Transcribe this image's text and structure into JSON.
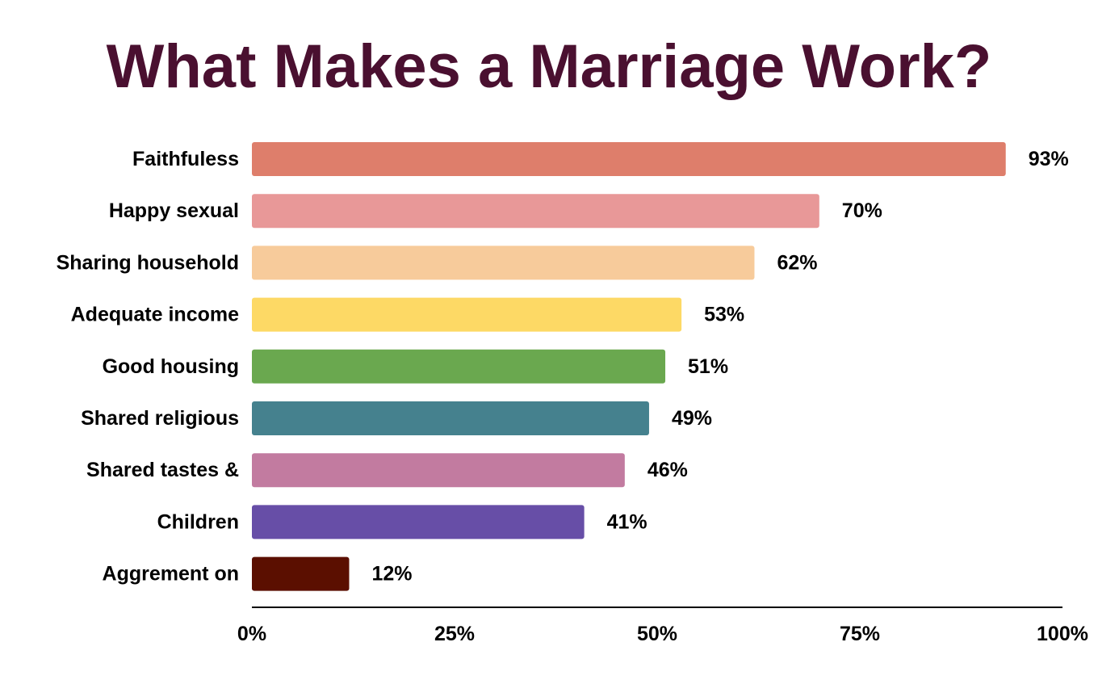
{
  "chart_data": {
    "type": "bar",
    "orientation": "horizontal",
    "title": "What Makes a Marriage Work?",
    "categories": [
      "Faithfuless",
      "Happy sexual",
      "Sharing household",
      "Adequate income",
      "Good housing",
      "Shared religious",
      "Shared tastes &",
      "Children",
      "Aggrement on"
    ],
    "values": [
      93,
      70,
      62,
      53,
      51,
      49,
      46,
      41,
      12
    ],
    "value_labels": [
      "93%",
      "70%",
      "62%",
      "53%",
      "51%",
      "49%",
      "46%",
      "41%",
      "12%"
    ],
    "colors": [
      "#de7e6b",
      "#e89898",
      "#f7cb9b",
      "#fdd965",
      "#6aa84f",
      "#45818e",
      "#c27ba0",
      "#674ea7",
      "#5b0f00"
    ],
    "xlim": [
      0,
      100
    ],
    "xticks": [
      0,
      25,
      50,
      75,
      100
    ],
    "xtick_labels": [
      "0%",
      "25%",
      "50%",
      "75%",
      "100%"
    ],
    "xlabel": "",
    "ylabel": "",
    "grid": false,
    "legend": "none"
  }
}
